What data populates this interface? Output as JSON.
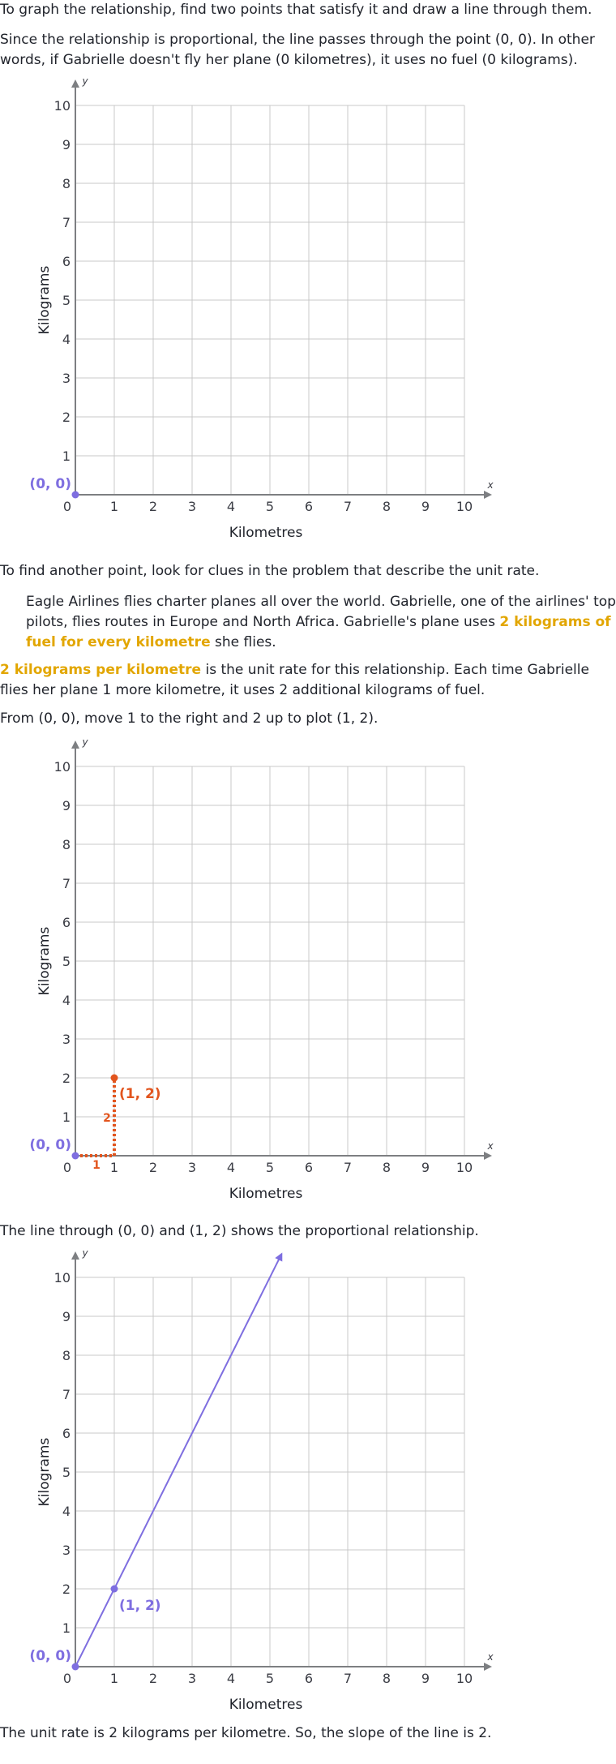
{
  "text": {
    "p1": "To graph the relationship, find two points that satisfy it and draw a line through them.",
    "p2": "Since the relationship is proportional, the line passes through the point (0, 0). In other words, if Gabrielle doesn't fly her plane (0 kilometres), it uses no fuel (0 kilograms).",
    "p3": "To find another point, look for clues in the problem that describe the unit rate.",
    "quote_a": "Eagle Airlines flies charter planes all over the world. Gabrielle, one of the airlines' top pilots, flies routes in Europe and North Africa. Gabrielle's plane uses ",
    "quote_hl": "2 kilograms of fuel for every kilometre",
    "quote_b": " she flies.",
    "p5_hl": "2 kilograms per kilometre",
    "p5_b": " is the unit rate for this relationship. Each time Gabrielle flies her plane 1 more kilometre, it uses 2 additional kilograms of fuel.",
    "p6": "From (0, 0), move 1 to the right and 2 up to plot (1, 2).",
    "p7": "The line through (0, 0) and (1, 2) shows the proportional relationship.",
    "p8": "The unit rate is 2 kilograms per kilometre. So, the slope of the line is 2."
  },
  "colors": {
    "grid": "#c8c8c8",
    "axis": "#7d7f82",
    "tick_text": "#3b3d45",
    "purple": "#7e6ee0",
    "orange": "#e2551e",
    "highlight": "#e2a600"
  },
  "chart_data": [
    {
      "type": "scatter",
      "xlabel": "Kilometres",
      "ylabel": "Kilograms",
      "x_axis_name": "x",
      "y_axis_name": "y",
      "xlim": [
        0,
        10
      ],
      "ylim": [
        0,
        10
      ],
      "xticks": [
        0,
        1,
        2,
        3,
        4,
        5,
        6,
        7,
        8,
        9,
        10
      ],
      "yticks": [
        1,
        2,
        3,
        4,
        5,
        6,
        7,
        8,
        9,
        10
      ],
      "grid": true,
      "points": [
        {
          "x": 0,
          "y": 0,
          "label": "(0, 0)",
          "color": "#7e6ee0"
        }
      ]
    },
    {
      "type": "scatter",
      "xlabel": "Kilometres",
      "ylabel": "Kilograms",
      "x_axis_name": "x",
      "y_axis_name": "y",
      "xlim": [
        0,
        10
      ],
      "ylim": [
        0,
        10
      ],
      "xticks": [
        0,
        1,
        2,
        3,
        4,
        5,
        6,
        7,
        8,
        9,
        10
      ],
      "yticks": [
        1,
        2,
        3,
        4,
        5,
        6,
        7,
        8,
        9,
        10
      ],
      "grid": true,
      "points": [
        {
          "x": 0,
          "y": 0,
          "label": "(0, 0)",
          "color": "#7e6ee0"
        },
        {
          "x": 1,
          "y": 2,
          "label": "(1, 2)",
          "color": "#e2551e"
        }
      ],
      "steps": [
        {
          "from": [
            0,
            0
          ],
          "to": [
            1,
            0
          ],
          "label": "1",
          "color": "#e2551e"
        },
        {
          "from": [
            1,
            0
          ],
          "to": [
            1,
            2
          ],
          "label": "2",
          "color": "#e2551e"
        }
      ]
    },
    {
      "type": "line",
      "xlabel": "Kilometres",
      "ylabel": "Kilograms",
      "x_axis_name": "x",
      "y_axis_name": "y",
      "xlim": [
        0,
        10
      ],
      "ylim": [
        0,
        10
      ],
      "xticks": [
        0,
        1,
        2,
        3,
        4,
        5,
        6,
        7,
        8,
        9,
        10
      ],
      "yticks": [
        1,
        2,
        3,
        4,
        5,
        6,
        7,
        8,
        9,
        10
      ],
      "grid": true,
      "points": [
        {
          "x": 0,
          "y": 0,
          "label": "(0, 0)",
          "color": "#7e6ee0"
        },
        {
          "x": 1,
          "y": 2,
          "label": "(1, 2)",
          "color": "#7e6ee0"
        }
      ],
      "line": {
        "from": [
          0,
          0
        ],
        "to": [
          5.3,
          10.6
        ],
        "slope": 2,
        "color": "#7e6ee0"
      }
    }
  ]
}
